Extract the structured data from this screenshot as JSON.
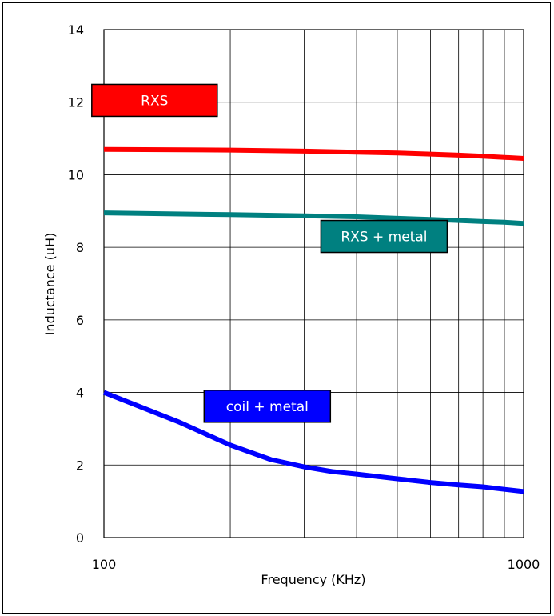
{
  "chart_data": {
    "type": "line",
    "xlabel": "Frequency (KHz)",
    "ylabel": "Inductance (uH)",
    "x_scale": "log",
    "xlim": [
      100,
      1000
    ],
    "ylim": [
      0,
      14
    ],
    "x_ticks": [
      100,
      1000
    ],
    "y_ticks": [
      0,
      2,
      4,
      6,
      8,
      10,
      12,
      14
    ],
    "grid": true,
    "series": [
      {
        "name": "RXS",
        "color": "#ff0000",
        "x": [
          100,
          200,
          300,
          400,
          500,
          600,
          700,
          800,
          900,
          1000
        ],
        "y": [
          10.7,
          10.68,
          10.65,
          10.62,
          10.6,
          10.57,
          10.54,
          10.51,
          10.48,
          10.45
        ]
      },
      {
        "name": "RXS + metal",
        "color": "#008080",
        "x": [
          100,
          200,
          300,
          400,
          500,
          600,
          700,
          800,
          900,
          1000
        ],
        "y": [
          8.95,
          8.9,
          8.87,
          8.84,
          8.8,
          8.77,
          8.74,
          8.71,
          8.69,
          8.66
        ]
      },
      {
        "name": "coil + metal",
        "color": "#0000ff",
        "x": [
          100,
          150,
          200,
          250,
          300,
          350,
          400,
          500,
          600,
          700,
          800,
          900,
          1000
        ],
        "y": [
          4.0,
          3.2,
          2.55,
          2.15,
          1.95,
          1.82,
          1.75,
          1.62,
          1.52,
          1.45,
          1.4,
          1.33,
          1.27
        ]
      }
    ]
  }
}
